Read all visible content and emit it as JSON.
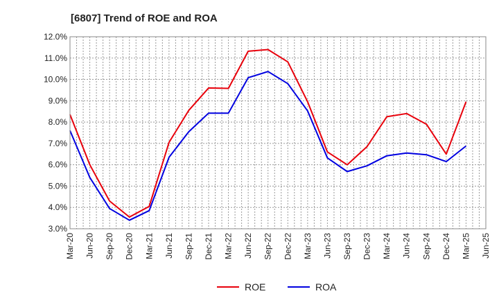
{
  "chart_data": {
    "type": "line",
    "title": "[6807]  Trend of ROE and ROA",
    "xlabel": "",
    "ylabel": "",
    "x": [
      "Mar-20",
      "Jun-20",
      "Sep-20",
      "Dec-20",
      "Mar-21",
      "Jun-21",
      "Sep-21",
      "Dec-21",
      "Mar-22",
      "Jun-22",
      "Sep-22",
      "Dec-22",
      "Mar-23",
      "Jun-23",
      "Sep-23",
      "Dec-23",
      "Mar-24",
      "Jun-24",
      "Sep-24",
      "Dec-24",
      "Mar-25",
      "Jun-25"
    ],
    "ylim": [
      3.0,
      12.0
    ],
    "yticks": [
      "3.0%",
      "4.0%",
      "5.0%",
      "6.0%",
      "7.0%",
      "8.0%",
      "9.0%",
      "10.0%",
      "11.0%",
      "12.0%"
    ],
    "grid": true,
    "legend_position": "bottom",
    "series": [
      {
        "name": "ROE",
        "color": "#e8000b",
        "values": [
          8.35,
          6.0,
          4.3,
          3.55,
          4.05,
          7.05,
          8.55,
          9.6,
          9.58,
          11.32,
          11.4,
          10.82,
          8.95,
          6.6,
          6.0,
          6.85,
          8.25,
          8.4,
          7.9,
          6.5,
          8.95,
          null
        ]
      },
      {
        "name": "ROA",
        "color": "#0000e0",
        "values": [
          7.6,
          5.4,
          3.95,
          3.4,
          3.85,
          6.35,
          7.55,
          8.42,
          8.42,
          10.08,
          10.37,
          9.8,
          8.52,
          6.32,
          5.68,
          5.95,
          6.42,
          6.55,
          6.47,
          6.15,
          6.88,
          null
        ]
      }
    ]
  }
}
